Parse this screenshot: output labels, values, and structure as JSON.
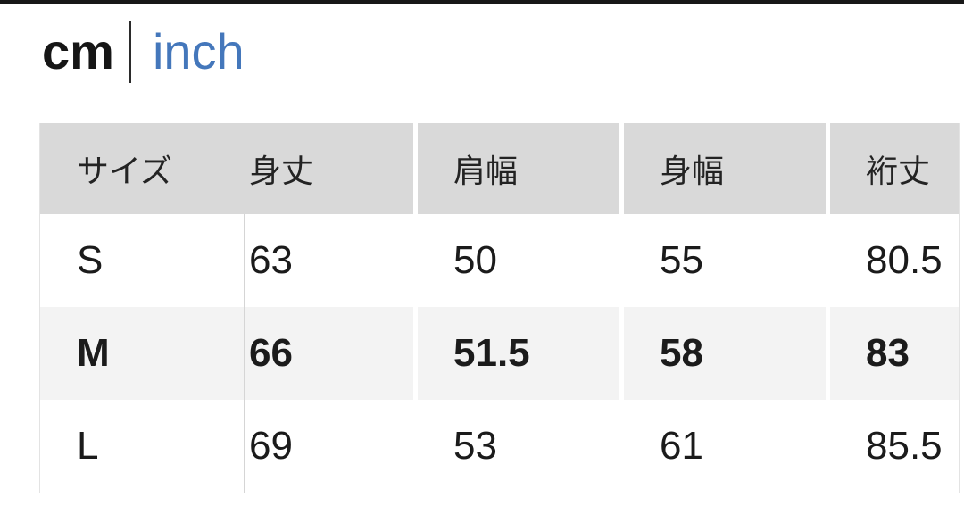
{
  "unit_toggle": {
    "cm_label": "cm",
    "inch_label": "inch",
    "selected_unit": "cm",
    "link_color": "#4477bb"
  },
  "size_table": {
    "headers": [
      "サイズ",
      "身丈",
      "肩幅",
      "身幅",
      "裄丈"
    ],
    "rows": [
      {
        "size": "S",
        "values": [
          "63",
          "50",
          "55",
          "80.5"
        ],
        "highlighted": false
      },
      {
        "size": "M",
        "values": [
          "66",
          "51.5",
          "58",
          "83"
        ],
        "highlighted": true
      },
      {
        "size": "L",
        "values": [
          "69",
          "53",
          "61",
          "85.5"
        ],
        "highlighted": false
      }
    ]
  },
  "colors": {
    "header_background": "#d9d9d9",
    "highlight_row_background": "#f3f3f3",
    "top_bar": "#181818",
    "text": "#1b1b1b"
  }
}
